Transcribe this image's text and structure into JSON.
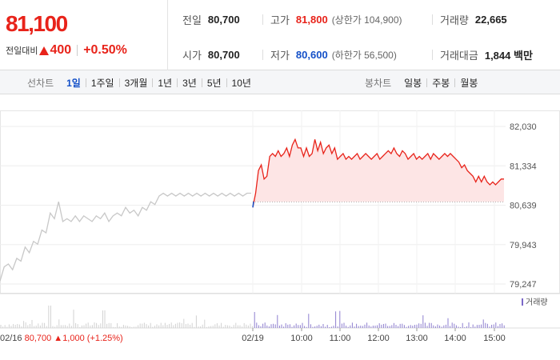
{
  "header": {
    "price": "81,100",
    "change_label": "전일대비",
    "change_value": "400",
    "change_pct": "+0.50%",
    "stats": {
      "prev_close_label": "전일",
      "prev_close": "80,700",
      "high_label": "고가",
      "high": "81,800",
      "upper_limit": "(상한가 104,900)",
      "volume_label": "거래량",
      "volume": "22,665",
      "open_label": "시가",
      "open": "80,700",
      "low_label": "저가",
      "low": "80,600",
      "lower_limit": "(하한가 56,500)",
      "amount_label": "거래대금",
      "amount": "1,844 백만"
    }
  },
  "tabs": {
    "line_label": "선차트",
    "line_tabs": [
      "1일",
      "1주일",
      "3개월",
      "1년",
      "3년",
      "5년",
      "10년"
    ],
    "line_active": "1일",
    "candle_label": "봉차트",
    "candle_tabs": [
      "일봉",
      "주봉",
      "월봉"
    ]
  },
  "colors": {
    "up": "#e8231a",
    "down": "#1450c8",
    "prev_line": "#c8c8c8"
  },
  "chart_data": {
    "type": "line",
    "y_ticks": [
      "82,030",
      "81,334",
      "80,639",
      "79,943",
      "79,247"
    ],
    "ylim": [
      79247,
      82030
    ],
    "baseline": 80700,
    "x_ticks": [
      "02/19",
      "10:00",
      "11:00",
      "12:00",
      "13:00",
      "14:00",
      "15:00"
    ],
    "volume_legend": "거래량",
    "prev_day_info": {
      "date": "02/16",
      "price": "80,700",
      "change": "1,000",
      "pct": "(+1.25%)"
    },
    "series": [
      {
        "values": [
          79300,
          79550,
          79600,
          79500,
          79700,
          79650,
          79900,
          79800,
          80000,
          79950,
          80200,
          80150,
          80500,
          80400,
          80700,
          80350,
          80400,
          80350,
          80450,
          80350,
          80450,
          80400,
          80350,
          80450,
          80400,
          80500,
          80350,
          80450,
          80500,
          80450,
          80600,
          80500,
          80550,
          80450,
          80600,
          80550,
          80700,
          80650,
          80800,
          80850,
          80800,
          80850,
          80800,
          80850,
          80800,
          80850,
          80800,
          80850,
          80800,
          80850,
          80800,
          80850,
          80800,
          80850,
          80800,
          80850,
          80800,
          80850,
          80800,
          80850,
          80850
        ]
      },
      {
        "values": [
          80600,
          80850,
          81250,
          81350,
          81100,
          81150,
          81500,
          81550,
          81500,
          81600,
          81500,
          81550,
          81650,
          81500,
          81700,
          81800,
          81650,
          81650,
          81500,
          81650,
          81500,
          81550,
          81800,
          81600,
          81750,
          81550,
          81650,
          81700,
          81550,
          81650,
          81450,
          81500,
          81550,
          81450,
          81500,
          81450,
          81500,
          81550,
          81450,
          81500,
          81550,
          81500,
          81450,
          81500,
          81550,
          81450,
          81500,
          81550,
          81600,
          81550,
          81650,
          81550,
          81500,
          81600,
          81550,
          81450,
          81500,
          81550,
          81450,
          81500,
          81450,
          81500,
          81550,
          81450,
          81550,
          81500,
          81450,
          81500,
          81550,
          81500,
          81550,
          81500,
          81450,
          81400,
          81300,
          81350,
          81250,
          81200,
          81150,
          81050,
          81150,
          81050,
          81150,
          81050,
          81000,
          81050,
          81000,
          81050,
          81100,
          81100
        ]
      }
    ]
  }
}
